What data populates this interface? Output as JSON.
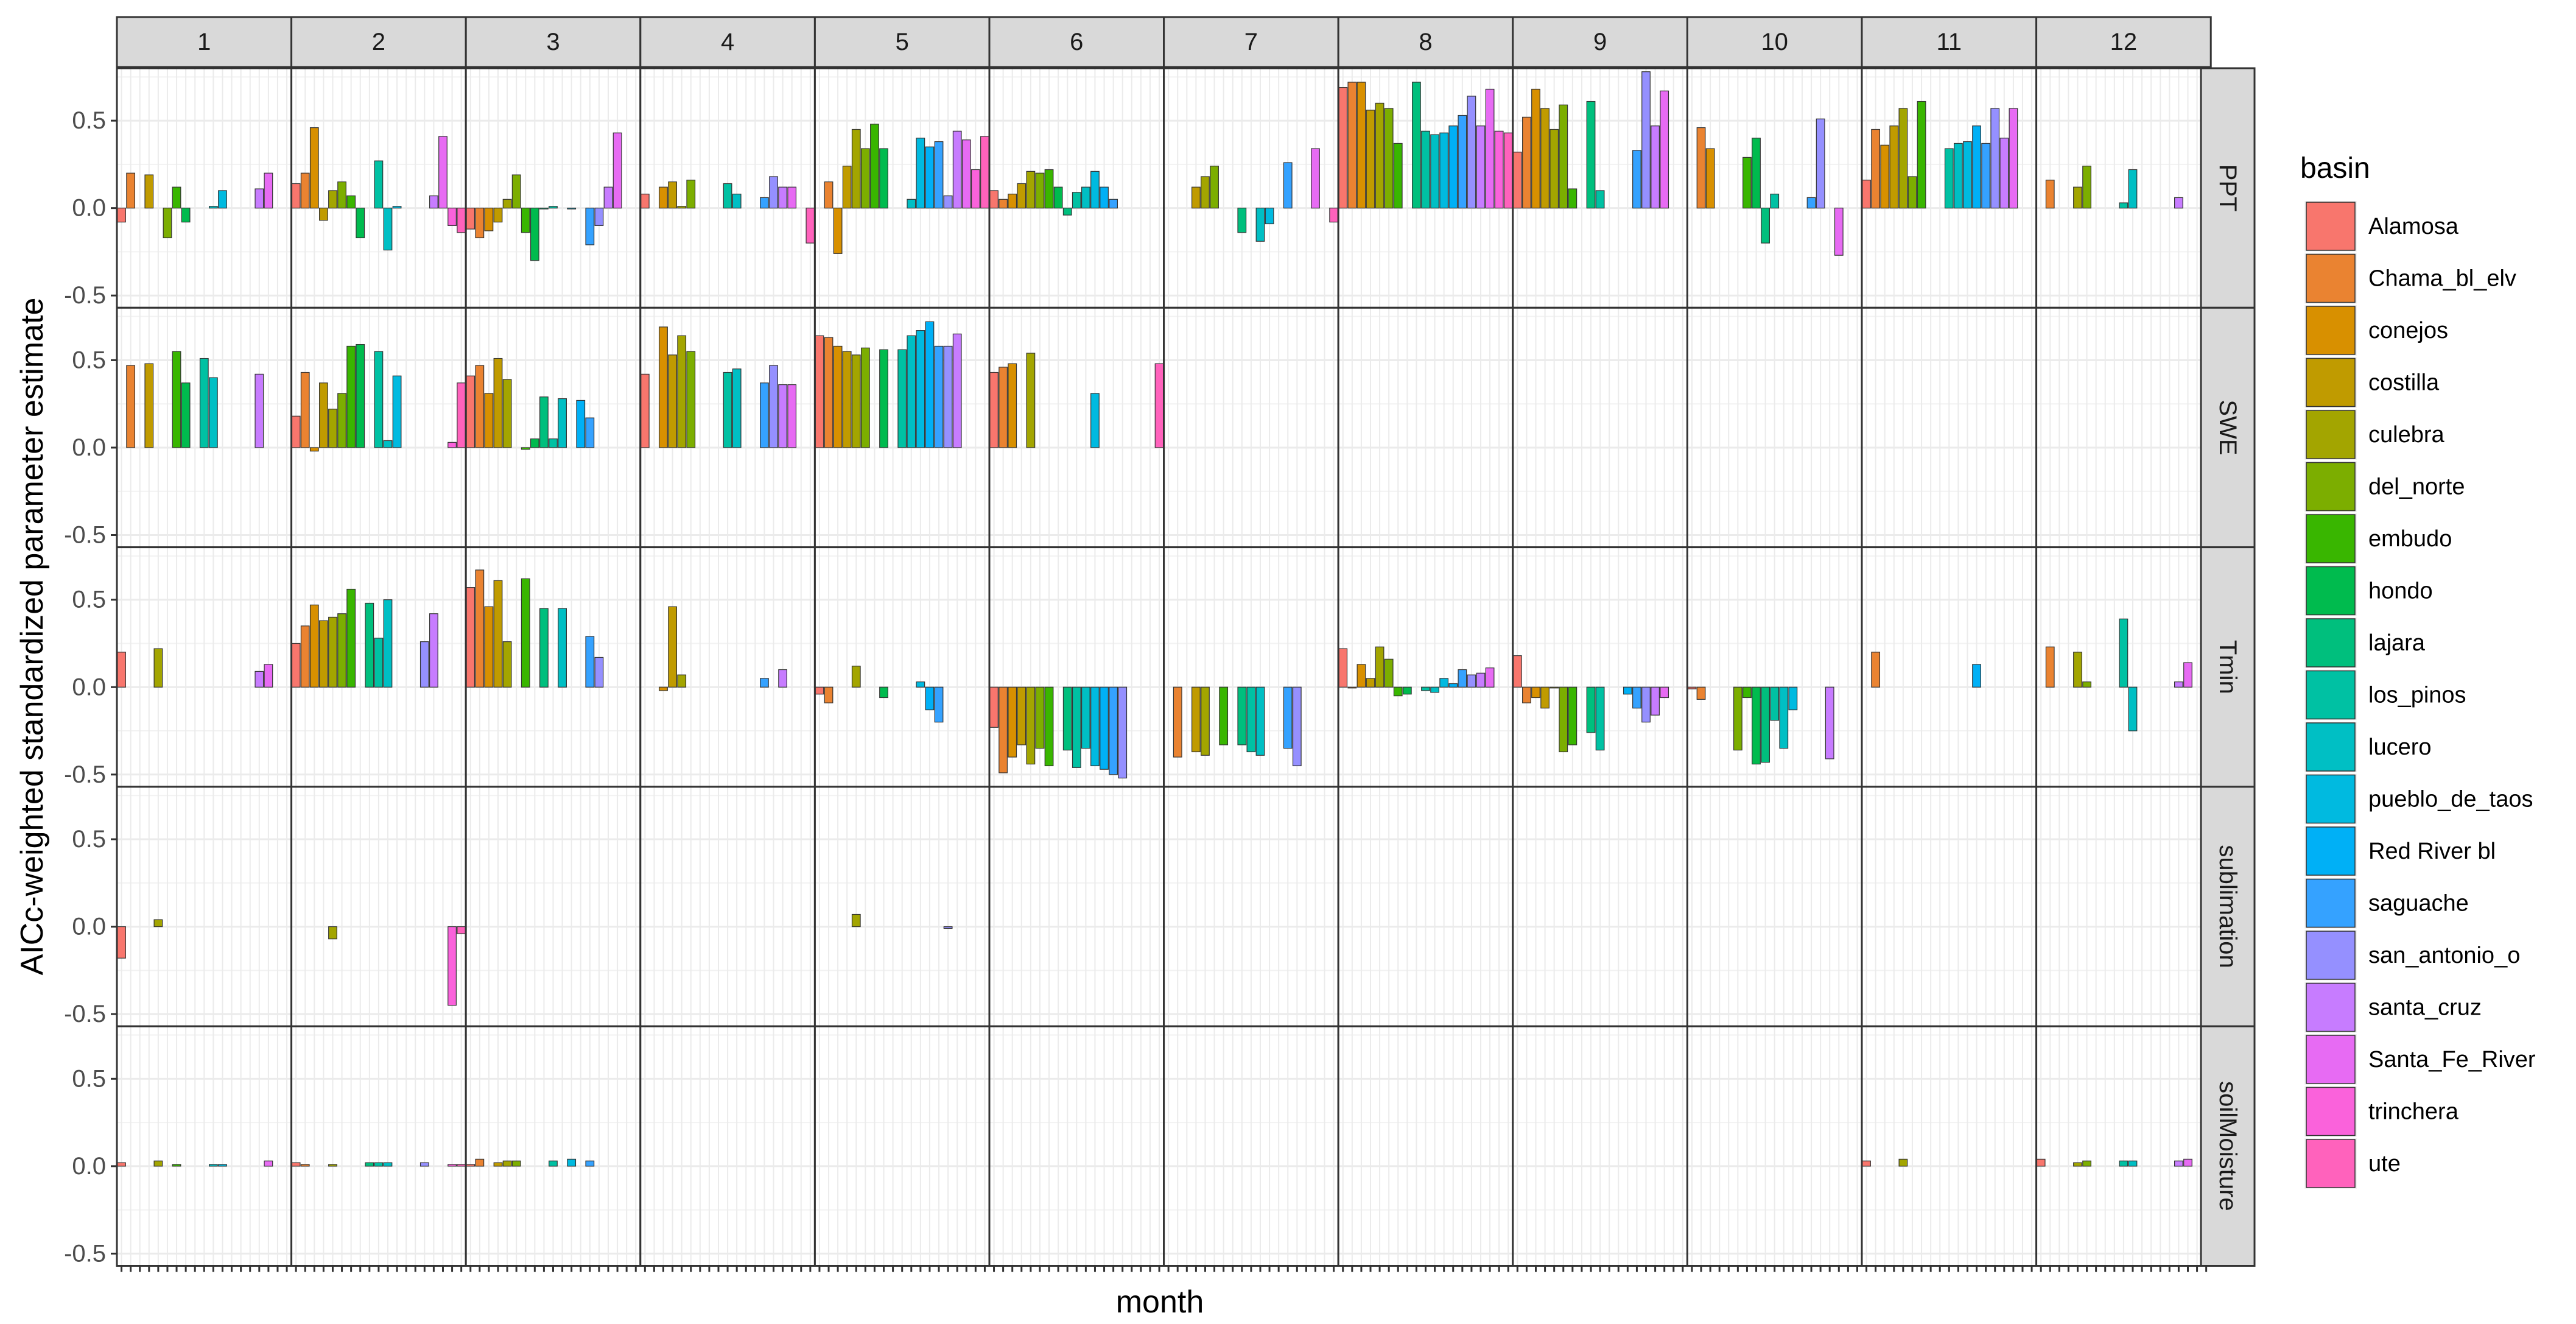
{
  "chart_data": {
    "type": "bar",
    "xlabel": "month",
    "ylabel": "AICc-weighted standardized parameter estimate",
    "ylim": [
      -0.57,
      0.8
    ],
    "yticks": [
      -0.5,
      0.0,
      0.5
    ],
    "ytick_labels": [
      "-0.5",
      "0.0",
      "0.5"
    ],
    "grid": true,
    "legend_position": "right",
    "legend_title": "basin",
    "facet_cols": [
      "1",
      "2",
      "3",
      "4",
      "5",
      "6",
      "7",
      "8",
      "9",
      "10",
      "11",
      "12"
    ],
    "facet_rows": [
      "PPT",
      "SWE",
      "Tmin",
      "sublimation",
      "soilMoisture"
    ],
    "series": [
      {
        "name": "Alamosa",
        "color": "#F8766D"
      },
      {
        "name": "Chama_bl_elv",
        "color": "#EA8331"
      },
      {
        "name": "conejos",
        "color": "#D89000"
      },
      {
        "name": "costilla",
        "color": "#C09B00"
      },
      {
        "name": "culebra",
        "color": "#A3A500"
      },
      {
        "name": "del_norte",
        "color": "#7CAE00"
      },
      {
        "name": "embudo",
        "color": "#39B600"
      },
      {
        "name": "hondo",
        "color": "#00BB4E"
      },
      {
        "name": "lajara",
        "color": "#00BF7D"
      },
      {
        "name": "los_pinos",
        "color": "#00C1A3"
      },
      {
        "name": "lucero",
        "color": "#00BFC4"
      },
      {
        "name": "pueblo_de_taos",
        "color": "#00BAE0"
      },
      {
        "name": "Red River bl",
        "color": "#00B0F6"
      },
      {
        "name": "saguache",
        "color": "#35A2FF"
      },
      {
        "name": "san_antonio_o",
        "color": "#9590FF"
      },
      {
        "name": "santa_cruz",
        "color": "#C77CFF"
      },
      {
        "name": "Santa_Fe_River",
        "color": "#E76BF3"
      },
      {
        "name": "trinchera",
        "color": "#FA62DB"
      },
      {
        "name": "ute",
        "color": "#FF62BC"
      }
    ],
    "values": {
      "PPT": {
        "1": [
          -0.08,
          0.2,
          null,
          0.19,
          null,
          -0.17,
          0.12,
          -0.08,
          null,
          null,
          0.01,
          0.1,
          null,
          null,
          null,
          0.11,
          0.2,
          null,
          null
        ],
        "2": [
          0.14,
          0.2,
          0.46,
          -0.07,
          0.1,
          0.15,
          0.07,
          -0.17,
          null,
          0.27,
          -0.24,
          0.01,
          null,
          null,
          null,
          0.07,
          0.41,
          -0.1,
          -0.14
        ],
        "3": [
          -0.12,
          -0.17,
          -0.13,
          -0.08,
          0.05,
          0.19,
          -0.14,
          -0.3,
          0.0,
          0.01,
          null,
          0.0,
          null,
          -0.21,
          -0.1,
          0.12,
          0.43,
          null,
          null
        ],
        "4": [
          0.08,
          null,
          0.12,
          0.15,
          0.01,
          0.16,
          null,
          null,
          null,
          0.14,
          0.08,
          null,
          null,
          0.06,
          0.18,
          0.12,
          0.12,
          null,
          -0.2
        ],
        "5": [
          null,
          0.15,
          -0.26,
          0.24,
          0.45,
          0.34,
          0.48,
          0.34,
          null,
          null,
          0.05,
          0.4,
          0.35,
          0.38,
          0.07,
          0.44,
          0.39,
          0.22,
          0.41
        ],
        "6": [
          0.1,
          0.05,
          0.08,
          0.14,
          0.21,
          0.2,
          0.22,
          0.12,
          -0.04,
          0.09,
          0.12,
          0.21,
          0.12,
          0.05,
          null,
          null,
          null,
          null,
          null
        ],
        "7": [
          null,
          null,
          null,
          0.12,
          0.18,
          0.24,
          null,
          null,
          -0.14,
          null,
          -0.19,
          -0.09,
          null,
          0.26,
          null,
          null,
          0.34,
          null,
          -0.08
        ],
        "8": [
          0.69,
          0.72,
          0.72,
          0.56,
          0.6,
          0.57,
          0.37,
          null,
          0.72,
          0.44,
          0.42,
          0.43,
          0.47,
          0.53,
          0.64,
          0.47,
          0.68,
          0.44,
          0.43
        ],
        "9": [
          0.32,
          0.52,
          0.68,
          0.57,
          0.45,
          0.59,
          0.11,
          null,
          0.61,
          0.1,
          null,
          null,
          null,
          0.33,
          0.78,
          0.47,
          0.67,
          null,
          null
        ],
        "10": [
          null,
          0.46,
          0.34,
          null,
          null,
          null,
          0.29,
          0.4,
          -0.2,
          0.08,
          null,
          null,
          null,
          0.06,
          0.51,
          null,
          -0.27,
          null,
          null
        ],
        "11": [
          0.16,
          0.45,
          0.36,
          0.47,
          0.57,
          0.18,
          0.61,
          null,
          null,
          0.34,
          0.37,
          0.38,
          0.47,
          0.37,
          0.57,
          0.4,
          0.57,
          null,
          null
        ],
        "12": [
          null,
          0.16,
          null,
          null,
          0.12,
          0.24,
          null,
          null,
          null,
          0.03,
          0.22,
          null,
          null,
          null,
          null,
          0.06,
          null,
          null,
          null
        ]
      },
      "SWE": {
        "1": [
          null,
          0.47,
          null,
          0.48,
          null,
          null,
          0.55,
          0.37,
          null,
          0.51,
          0.4,
          null,
          null,
          null,
          null,
          0.42,
          null,
          null,
          null
        ],
        "2": [
          0.18,
          0.43,
          -0.02,
          0.37,
          0.22,
          0.31,
          0.58,
          0.59,
          null,
          0.55,
          0.04,
          0.41,
          null,
          null,
          null,
          null,
          null,
          0.03,
          0.37
        ],
        "3": [
          0.41,
          0.47,
          0.31,
          0.51,
          0.39,
          null,
          -0.01,
          0.05,
          0.29,
          0.05,
          0.28,
          null,
          0.27,
          0.17,
          null,
          null,
          null,
          null,
          null
        ],
        "4": [
          0.42,
          null,
          0.69,
          0.53,
          0.64,
          0.55,
          null,
          null,
          null,
          0.43,
          0.45,
          null,
          null,
          0.37,
          0.47,
          0.36,
          0.36,
          null,
          null
        ],
        "5": [
          0.64,
          0.63,
          0.58,
          0.55,
          0.53,
          0.57,
          null,
          0.56,
          null,
          0.56,
          0.64,
          0.67,
          0.72,
          0.58,
          0.58,
          0.65,
          null,
          null,
          null
        ],
        "6": [
          0.43,
          0.46,
          0.48,
          null,
          0.54,
          null,
          null,
          null,
          null,
          null,
          null,
          0.31,
          null,
          null,
          null,
          null,
          null,
          null,
          0.48
        ],
        "7": [],
        "8": [],
        "9": [],
        "10": [],
        "11": [],
        "12": []
      },
      "Tmin": {
        "1": [
          0.2,
          null,
          null,
          null,
          0.22,
          null,
          null,
          null,
          null,
          null,
          null,
          null,
          null,
          null,
          null,
          0.09,
          0.13,
          null,
          null
        ],
        "2": [
          0.25,
          0.35,
          0.47,
          0.38,
          0.4,
          0.42,
          0.56,
          null,
          0.48,
          0.28,
          0.5,
          null,
          null,
          null,
          0.26,
          0.42,
          null,
          null,
          null
        ],
        "3": [
          0.57,
          0.67,
          0.46,
          0.61,
          0.26,
          null,
          0.62,
          null,
          0.45,
          null,
          0.45,
          null,
          null,
          0.29,
          0.17,
          null,
          null,
          null,
          null
        ],
        "4": [
          null,
          null,
          -0.02,
          0.46,
          0.07,
          null,
          null,
          null,
          null,
          null,
          null,
          null,
          null,
          0.05,
          null,
          0.1,
          null,
          null,
          null
        ],
        "5": [
          -0.04,
          -0.09,
          null,
          null,
          0.12,
          null,
          null,
          -0.06,
          null,
          null,
          null,
          0.03,
          -0.13,
          -0.2,
          null,
          null,
          null,
          null,
          null
        ],
        "6": [
          -0.23,
          -0.49,
          -0.4,
          -0.33,
          -0.44,
          -0.35,
          -0.45,
          null,
          -0.36,
          -0.46,
          -0.35,
          -0.45,
          -0.47,
          -0.5,
          -0.52,
          null,
          null,
          null,
          null
        ],
        "7": [
          null,
          -0.4,
          null,
          -0.37,
          -0.39,
          null,
          -0.33,
          null,
          -0.33,
          -0.37,
          -0.39,
          null,
          null,
          -0.35,
          -0.45,
          null,
          null,
          null,
          null
        ],
        "8": [
          0.22,
          0.0,
          0.13,
          0.05,
          0.23,
          0.16,
          -0.05,
          -0.04,
          null,
          -0.02,
          -0.03,
          0.05,
          0.02,
          0.1,
          0.07,
          0.08,
          0.11,
          null,
          null
        ],
        "9": [
          0.18,
          -0.09,
          -0.06,
          -0.12,
          0.0,
          -0.37,
          -0.33,
          null,
          -0.26,
          -0.36,
          null,
          null,
          -0.04,
          -0.12,
          -0.2,
          -0.16,
          -0.06,
          null,
          null
        ],
        "10": [
          -0.01,
          -0.07,
          null,
          null,
          null,
          -0.36,
          -0.06,
          -0.44,
          -0.43,
          -0.19,
          -0.35,
          -0.13,
          null,
          null,
          null,
          -0.41,
          null,
          null,
          null
        ],
        "11": [
          null,
          0.2,
          null,
          null,
          null,
          null,
          null,
          null,
          null,
          null,
          null,
          null,
          0.13,
          null,
          null,
          null,
          null,
          null,
          null
        ],
        "12": [
          null,
          0.23,
          null,
          null,
          0.2,
          0.03,
          null,
          null,
          null,
          0.39,
          -0.25,
          null,
          null,
          null,
          null,
          0.03,
          0.14,
          null,
          null
        ]
      },
      "sublimation": {
        "1": [
          -0.18,
          null,
          null,
          null,
          0.04,
          null,
          null,
          null,
          null,
          null,
          null,
          null,
          null,
          null,
          null,
          null,
          null,
          null,
          null
        ],
        "2": [
          null,
          null,
          null,
          null,
          -0.07,
          null,
          null,
          null,
          null,
          null,
          null,
          null,
          null,
          null,
          null,
          null,
          null,
          -0.45,
          -0.04
        ],
        "3": [],
        "4": [],
        "5": [
          null,
          null,
          null,
          null,
          0.07,
          null,
          null,
          null,
          null,
          null,
          null,
          null,
          null,
          null,
          -0.01,
          null,
          null,
          null,
          null
        ],
        "6": [],
        "7": [],
        "8": [],
        "9": [],
        "10": [],
        "11": [],
        "12": []
      },
      "soilMoisture": {
        "1": [
          0.02,
          null,
          null,
          null,
          0.03,
          null,
          0.01,
          null,
          null,
          null,
          0.01,
          0.01,
          null,
          null,
          null,
          null,
          0.03,
          null,
          null
        ],
        "2": [
          0.02,
          0.01,
          null,
          null,
          0.01,
          null,
          null,
          null,
          0.02,
          0.02,
          0.02,
          null,
          null,
          null,
          0.02,
          null,
          null,
          0.01,
          0.01
        ],
        "3": [
          0.01,
          0.04,
          null,
          0.02,
          0.03,
          0.03,
          null,
          null,
          null,
          0.03,
          null,
          0.04,
          null,
          0.03,
          null,
          null,
          null,
          null,
          null
        ],
        "4": [],
        "5": [],
        "6": [],
        "7": [],
        "8": [],
        "9": [],
        "10": [],
        "11": [
          0.03,
          null,
          null,
          null,
          0.04,
          null,
          null,
          null,
          null,
          null,
          null,
          null,
          null,
          null,
          null,
          null,
          null,
          null,
          null
        ],
        "12": [
          0.04,
          null,
          null,
          null,
          0.02,
          0.03,
          null,
          null,
          null,
          0.03,
          0.03,
          null,
          null,
          null,
          null,
          0.03,
          0.04,
          null,
          null
        ]
      }
    }
  }
}
